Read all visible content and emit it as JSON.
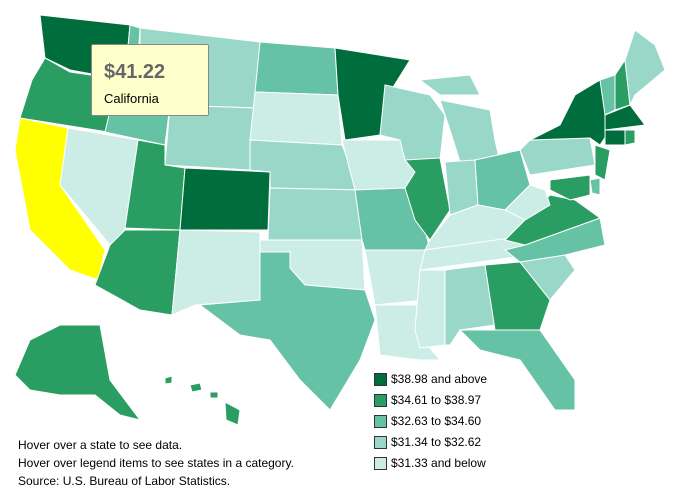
{
  "map": {
    "regions": [
      "#006d3c",
      "#2a9d63",
      "#ffff00",
      "#ccece6",
      "#66c2a4",
      "#99d8c9",
      "#99d8c9",
      "#2a9d63",
      "#2a9d63",
      "#006d3c",
      "#ccece6",
      "#66c2a4",
      "#ccece6",
      "#99d8c9",
      "#99d8c9",
      "#ccece6",
      "#66c2a4",
      "#006d3c",
      "#ccece6",
      "#66c2a4",
      "#ccece6",
      "#ccece6",
      "#99d8c9",
      "#2a9d63",
      "#99d8c9",
      "#99d8c9",
      "#66c2a4",
      "#ccece6",
      "#ccece6",
      "#ccece6",
      "#99d8c9",
      "#2a9d63",
      "#66c2a4",
      "#99d8c9",
      "#66c2a4",
      "#2a9d63",
      "#ccece6",
      "#99d8c9",
      "#006d3c",
      "#66c2a4",
      "#2a9d63",
      "#99d8c9",
      "#006d3c",
      "#006d3c",
      "#2a9d63",
      "#2a9d63",
      "#66c2a4",
      "#2a9d63",
      "#2a9d63",
      "#2a9d63"
    ],
    "tooltip": {
      "value": "$41.22",
      "label": "California"
    },
    "legend": [
      {
        "label": "$38.98 and above",
        "color": "#006d3c"
      },
      {
        "label": "$34.61 to $38.97",
        "color": "#2a9d63"
      },
      {
        "label": "$32.63 to $34.60",
        "color": "#66c2a4"
      },
      {
        "label": "$31.34 to $32.62",
        "color": "#99d8c9"
      },
      {
        "label": "$31.33 and below",
        "color": "#ccece6"
      }
    ],
    "notes": [
      "Hover over a state to see data.",
      "Hover over legend items to see states in a category.",
      "Source: U.S. Bureau of Labor Statistics."
    ]
  }
}
